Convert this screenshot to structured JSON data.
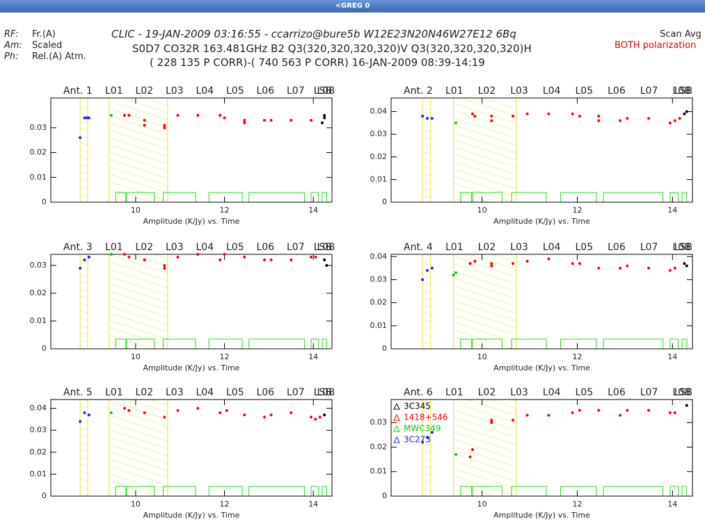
{
  "window": {
    "title": "<GREG  0"
  },
  "header": {
    "left": [
      {
        "key": "RF:",
        "value": "Fr.(A)"
      },
      {
        "key": "Am:",
        "value": "Scaled"
      },
      {
        "key": "Ph:",
        "value": "Rel.(A) Atm."
      }
    ],
    "lines": [
      "CLIC - 19-JAN-2009 03:16:55 - ccarrizo@bure5b    W12E23N20N46W27E12 6Bq",
      "S0D7 CO32R 163.481GHz B2 Q3(320,320,320,320)V Q3(320,320,320,320)H",
      "( 228 135 P CORR)-( 740 563 P CORR) 16-JAN-2009 08:39-14:19"
    ],
    "right": [
      "Scan Avg",
      "BOTH polarization"
    ]
  },
  "chart_data": [
    {
      "type": "scatter",
      "title": "Ant. 1",
      "bands": [
        "L01",
        "L02",
        "L03",
        "L04",
        "L05",
        "L06",
        "L07",
        "L08"
      ],
      "sideband": "LSB",
      "x_label": "Amplitude (K/Jy)  vs.  Time",
      "xlim": [
        8.09,
        14.42
      ],
      "xticks": [
        10,
        12,
        14
      ],
      "ylim": [
        0,
        0.042
      ],
      "yticks": [
        0,
        0.01,
        0.02,
        0.03
      ],
      "series": [
        {
          "color": "#2020ff",
          "x": [
            8.75,
            8.85,
            8.9,
            8.95
          ],
          "values": [
            0.026,
            0.034,
            0.034,
            0.034
          ]
        },
        {
          "color": "#00cc00",
          "x": [
            9.45
          ],
          "values": [
            0.035
          ]
        },
        {
          "color": "#ff0000",
          "x": [
            9.75,
            9.85,
            10.2,
            10.2,
            10.65,
            10.65,
            10.95,
            11.4,
            11.9,
            12.0,
            12.45,
            12.45,
            12.9,
            13.05,
            13.5,
            13.95
          ],
          "values": [
            0.035,
            0.035,
            0.033,
            0.031,
            0.031,
            0.03,
            0.035,
            0.035,
            0.035,
            0.034,
            0.033,
            0.032,
            0.033,
            0.033,
            0.033,
            0.033
          ]
        },
        {
          "color": "#000000",
          "x": [
            14.2,
            14.25,
            14.25
          ],
          "values": [
            0.032,
            0.035,
            0.034
          ]
        }
      ]
    },
    {
      "type": "scatter",
      "title": "Ant. 2",
      "bands": [
        "L01",
        "L02",
        "L03",
        "L04",
        "L05",
        "L06",
        "L07",
        "L08"
      ],
      "sideband": "LSB",
      "x_label": "Amplitude (K/Jy)  vs.  Time",
      "xlim": [
        8.09,
        14.42
      ],
      "xticks": [
        10,
        12,
        14
      ],
      "ylim": [
        0,
        0.046
      ],
      "yticks": [
        0,
        0.01,
        0.02,
        0.03,
        0.04
      ],
      "series": [
        {
          "color": "#2020ff",
          "x": [
            8.75,
            8.85,
            8.95
          ],
          "values": [
            0.038,
            0.037,
            0.037
          ]
        },
        {
          "color": "#00cc00",
          "x": [
            9.45
          ],
          "values": [
            0.035
          ]
        },
        {
          "color": "#ff0000",
          "x": [
            9.8,
            9.85,
            10.2,
            10.2,
            10.65,
            10.95,
            11.4,
            11.9,
            12.05,
            12.45,
            12.45,
            12.9,
            13.05,
            13.5,
            13.95,
            14.05,
            14.15
          ],
          "values": [
            0.039,
            0.038,
            0.036,
            0.038,
            0.038,
            0.039,
            0.039,
            0.039,
            0.038,
            0.038,
            0.036,
            0.036,
            0.037,
            0.037,
            0.035,
            0.036,
            0.037
          ]
        },
        {
          "color": "#000000",
          "x": [
            14.25,
            14.3
          ],
          "values": [
            0.039,
            0.04
          ]
        }
      ]
    },
    {
      "type": "scatter",
      "title": "Ant. 3",
      "bands": [
        "L01",
        "L02",
        "L03",
        "L04",
        "L05",
        "L06",
        "L07",
        "L08"
      ],
      "sideband": "LSB",
      "x_label": "Amplitude (K/Jy)  vs.  Time",
      "xlim": [
        8.09,
        14.42
      ],
      "xticks": [
        10,
        12,
        14
      ],
      "ylim": [
        0,
        0.034
      ],
      "yticks": [
        0,
        0.01,
        0.02,
        0.03
      ],
      "series": [
        {
          "color": "#2020ff",
          "x": [
            8.75,
            8.85,
            8.95
          ],
          "values": [
            0.029,
            0.032,
            0.033
          ]
        },
        {
          "color": "#00cc00",
          "x": [
            9.45
          ],
          "values": [
            0.034
          ]
        },
        {
          "color": "#ff0000",
          "x": [
            9.75,
            9.85,
            10.2,
            10.65,
            10.65,
            10.95,
            11.4,
            11.9,
            12.0,
            12.45,
            12.9,
            13.05,
            13.5,
            13.95,
            14.05
          ],
          "values": [
            0.034,
            0.033,
            0.032,
            0.03,
            0.029,
            0.033,
            0.034,
            0.032,
            0.034,
            0.033,
            0.032,
            0.032,
            0.032,
            0.033,
            0.033
          ]
        },
        {
          "color": "#000000",
          "x": [
            14.25,
            14.3
          ],
          "values": [
            0.032,
            0.03
          ]
        }
      ]
    },
    {
      "type": "scatter",
      "title": "Ant. 4",
      "bands": [
        "L01",
        "L02",
        "L03",
        "L04",
        "L05",
        "L06",
        "L07",
        "L08"
      ],
      "sideband": "LSB",
      "x_label": "Amplitude (K/Jy)  vs.  Time",
      "xlim": [
        8.09,
        14.42
      ],
      "xticks": [
        10,
        12,
        14
      ],
      "ylim": [
        0,
        0.041
      ],
      "yticks": [
        0,
        0.01,
        0.02,
        0.03,
        0.04
      ],
      "series": [
        {
          "color": "#2020ff",
          "x": [
            8.75,
            8.85,
            8.95
          ],
          "values": [
            0.03,
            0.034,
            0.035
          ]
        },
        {
          "color": "#00cc00",
          "x": [
            9.4,
            9.45
          ],
          "values": [
            0.032,
            0.033
          ]
        },
        {
          "color": "#ff0000",
          "x": [
            9.75,
            9.85,
            10.2,
            10.2,
            10.65,
            10.95,
            11.4,
            11.9,
            12.05,
            12.45,
            12.9,
            13.05,
            13.5,
            13.95,
            14.05
          ],
          "values": [
            0.037,
            0.038,
            0.037,
            0.036,
            0.037,
            0.038,
            0.039,
            0.037,
            0.037,
            0.035,
            0.035,
            0.036,
            0.035,
            0.034,
            0.035
          ]
        },
        {
          "color": "#000000",
          "x": [
            14.25,
            14.3
          ],
          "values": [
            0.037,
            0.036
          ]
        }
      ]
    },
    {
      "type": "scatter",
      "title": "Ant. 5",
      "bands": [
        "L01",
        "L02",
        "L03",
        "L04",
        "L05",
        "L06",
        "L07",
        "L08"
      ],
      "sideband": "LSB",
      "x_label": "Amplitude (K/Jy)  vs.  Time",
      "xlim": [
        8.09,
        14.42
      ],
      "xticks": [
        10,
        12,
        14
      ],
      "ylim": [
        0,
        0.044
      ],
      "yticks": [
        0,
        0.01,
        0.02,
        0.03,
        0.04
      ],
      "series": [
        {
          "color": "#2020ff",
          "x": [
            8.75,
            8.85,
            8.95
          ],
          "values": [
            0.034,
            0.038,
            0.037
          ]
        },
        {
          "color": "#00cc00",
          "x": [
            9.45
          ],
          "values": [
            0.038
          ]
        },
        {
          "color": "#ff0000",
          "x": [
            9.75,
            9.85,
            10.2,
            10.65,
            10.95,
            11.4,
            11.9,
            12.05,
            12.45,
            12.9,
            13.05,
            13.5,
            13.95,
            14.05,
            14.15
          ],
          "values": [
            0.04,
            0.039,
            0.038,
            0.036,
            0.039,
            0.04,
            0.038,
            0.039,
            0.037,
            0.036,
            0.037,
            0.038,
            0.036,
            0.035,
            0.036
          ]
        },
        {
          "color": "#000000",
          "x": [
            14.25
          ],
          "values": [
            0.037
          ]
        }
      ]
    },
    {
      "type": "scatter",
      "title": "Ant. 6",
      "bands": [
        "L01",
        "L02",
        "L03",
        "L04",
        "L05",
        "L06",
        "L07",
        "L08"
      ],
      "sideband": "LSB",
      "x_label": "Amplitude (K/Jy)  vs.  Time",
      "xlim": [
        8.09,
        14.42
      ],
      "xticks": [
        10,
        12,
        14
      ],
      "ylim": [
        0,
        0.0394
      ],
      "yticks": [
        0,
        0.01,
        0.02,
        0.03
      ],
      "series": [
        {
          "name": "3C345",
          "color": "#000000",
          "x": [
            14.3
          ],
          "values": [
            0.037
          ]
        },
        {
          "name": "1418+546",
          "color": "#ff0000",
          "x": [
            9.75,
            9.8,
            10.2,
            10.2,
            10.65,
            10.95,
            11.4,
            11.9,
            12.05,
            12.45,
            12.9,
            13.05,
            13.5,
            13.95,
            14.05
          ],
          "values": [
            0.016,
            0.019,
            0.03,
            0.031,
            0.031,
            0.033,
            0.033,
            0.034,
            0.035,
            0.035,
            0.033,
            0.035,
            0.035,
            0.034,
            0.034
          ]
        },
        {
          "name": "MWC349",
          "color": "#00cc00",
          "x": [
            9.45
          ],
          "values": [
            0.017
          ]
        },
        {
          "name": "3C273",
          "color": "#2020ff",
          "x": [
            8.75,
            8.85,
            8.95
          ],
          "values": [
            0.022,
            0.024,
            0.026
          ]
        }
      ]
    }
  ]
}
